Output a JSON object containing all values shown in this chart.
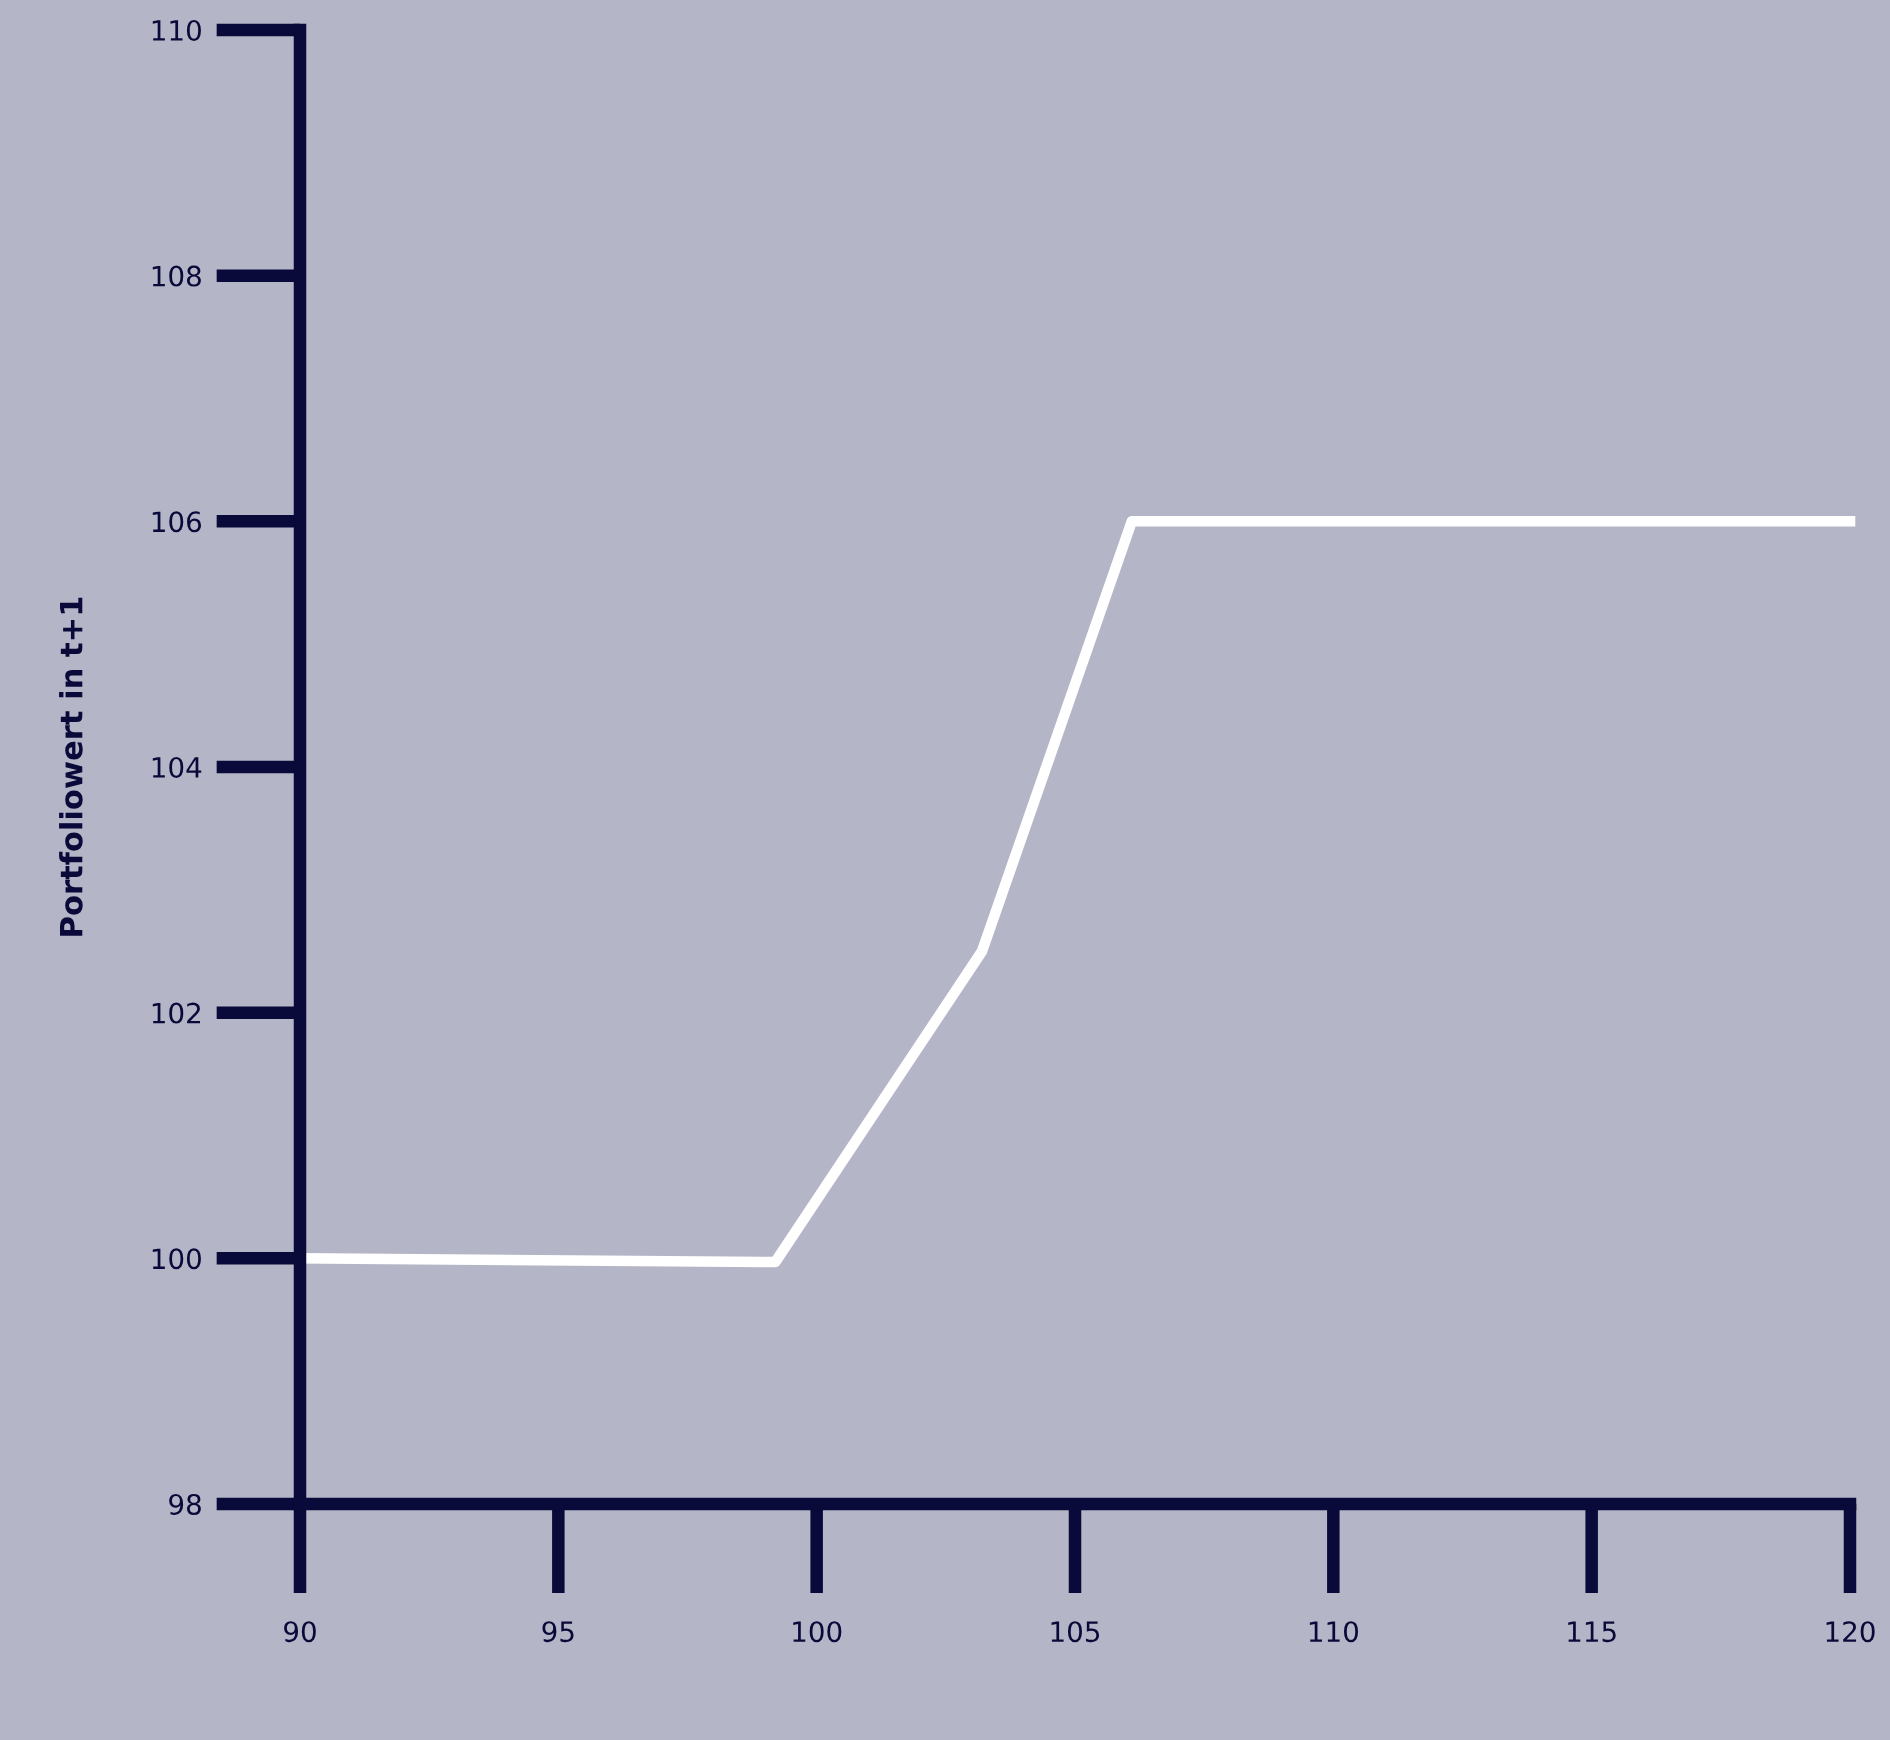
{
  "chart_data": {
    "type": "line",
    "ylabel": "Portfoliowert in t+1",
    "x": [
      90,
      99.2,
      103.2,
      106.1,
      120
    ],
    "series": [
      {
        "color": "#ffffff",
        "values": [
          100.0,
          99.97,
          102.5,
          106.0,
          106.0
        ]
      }
    ],
    "xlim": [
      90,
      120
    ],
    "xticks": [
      90,
      95,
      100,
      105,
      110,
      115,
      120
    ],
    "ylim": [
      98,
      110
    ],
    "yticks": [
      98,
      100,
      102,
      104,
      106,
      108,
      110
    ],
    "grid": false,
    "legend": false,
    "marker": "none",
    "line_style": "solid"
  }
}
